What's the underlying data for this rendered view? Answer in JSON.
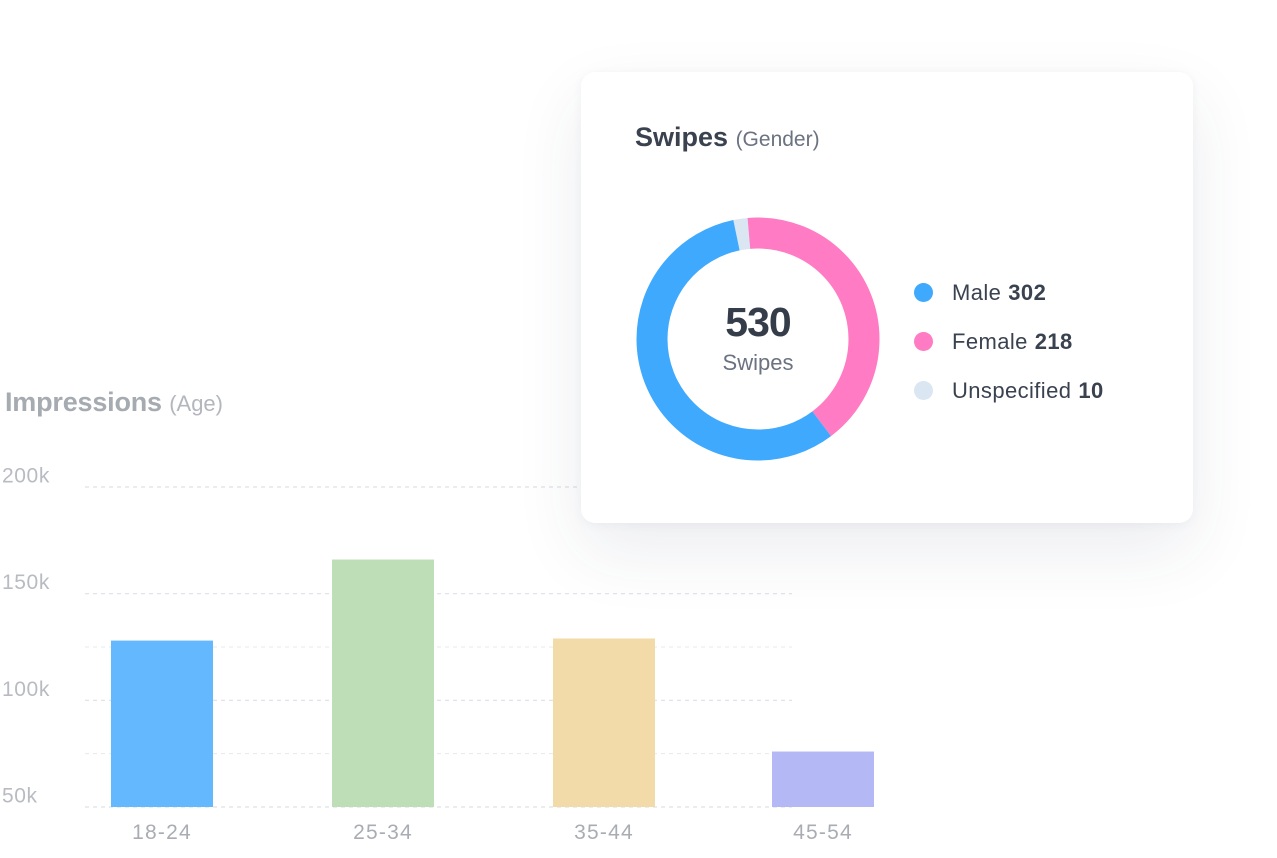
{
  "chart_data": [
    {
      "type": "bar",
      "title": "Impressions",
      "subtitle": "(Age)",
      "categories": [
        "18-24",
        "25-34",
        "35-44",
        "45-54"
      ],
      "values": [
        128000,
        166000,
        129000,
        76000
      ],
      "colors": [
        "#64b8fd",
        "#bedeb8",
        "#f3daa9",
        "#b4b9f5"
      ],
      "xlabel": "",
      "ylabel": "",
      "yticks": [
        50000,
        100000,
        150000,
        200000
      ],
      "ytick_labels": [
        "50k",
        "100k",
        "150k",
        "200k"
      ],
      "ylim": [
        50000,
        200000
      ],
      "grid": true,
      "legend": "none"
    },
    {
      "type": "pie",
      "style": "donut",
      "title": "Swipes",
      "subtitle": "(Gender)",
      "total_value": "530",
      "total_label": "Swipes",
      "categories": [
        "Male",
        "Female",
        "Unspecified"
      ],
      "values": [
        302,
        218,
        10
      ],
      "colors": [
        "#3fa9fd",
        "#ff7bc3",
        "#dbe6f3"
      ],
      "legend": "right"
    }
  ]
}
